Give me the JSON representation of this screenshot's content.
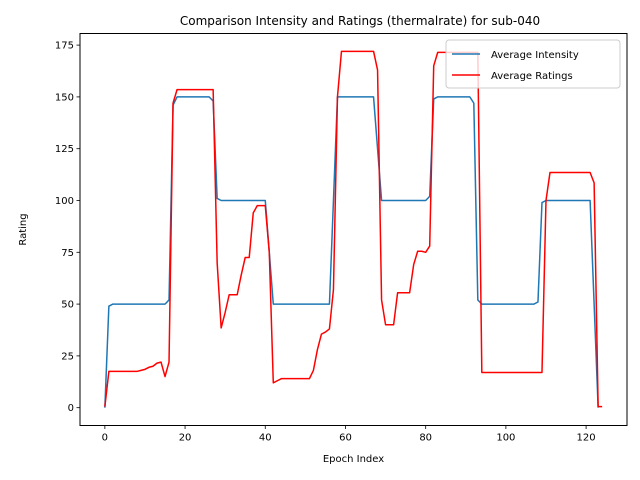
{
  "chart_data": {
    "type": "line",
    "title": "Comparison Intensity and Ratings (thermalrate) for sub-040",
    "xlabel": "Epoch Index",
    "ylabel": "Rating",
    "xlim": [
      -6.2,
      130.2
    ],
    "ylim": [
      -8.6,
      180.6
    ],
    "xticks": [
      0,
      20,
      40,
      60,
      80,
      100,
      120
    ],
    "yticks": [
      0,
      25,
      50,
      75,
      100,
      125,
      150,
      175
    ],
    "grid": false,
    "legend": "top-right",
    "series": [
      {
        "name": "Average Intensity",
        "color": "#1f77b4",
        "x": [
          0,
          1,
          2,
          15,
          16,
          17,
          18,
          26,
          27,
          28,
          29,
          40,
          41,
          42,
          56,
          57,
          58,
          67,
          68,
          69,
          70,
          80,
          81,
          82,
          83,
          91,
          92,
          93,
          94,
          107,
          108,
          109,
          110,
          121,
          122,
          123
        ],
        "y": [
          0,
          49,
          50,
          50,
          52,
          146,
          150,
          150,
          148,
          101,
          100,
          100,
          75,
          50,
          50,
          100,
          150,
          150,
          125,
          100,
          100,
          100,
          102,
          149,
          150,
          150,
          147,
          52,
          50,
          50,
          51,
          99,
          100,
          100,
          50,
          0
        ]
      },
      {
        "name": "Average Ratings",
        "color": "#ff0000",
        "x": [
          0,
          1,
          2,
          8,
          9,
          10,
          11,
          12,
          13,
          14,
          15,
          16,
          17,
          18,
          19,
          27,
          28,
          29,
          30,
          31,
          32,
          33,
          34,
          35,
          36,
          37,
          38,
          39,
          40,
          41,
          42,
          43,
          44,
          51,
          52,
          53,
          54,
          55,
          56,
          57,
          58,
          59,
          67,
          68,
          69,
          70,
          71,
          72,
          73,
          74,
          75,
          76,
          77,
          78,
          79,
          80,
          81,
          82,
          83,
          93,
          94,
          108,
          109,
          110,
          111,
          121,
          122,
          123,
          124
        ],
        "y": [
          0.5,
          17.5,
          17.5,
          17.5,
          18,
          18.5,
          19.5,
          20,
          21.5,
          22,
          15,
          22,
          147,
          153.5,
          153.5,
          153.5,
          70,
          38.5,
          46,
          54.5,
          54.5,
          54.5,
          64,
          72.5,
          72.5,
          94,
          97.5,
          97.5,
          97.5,
          75,
          12,
          13,
          14,
          14,
          18,
          28,
          35.5,
          36.5,
          38,
          57,
          150,
          172,
          172,
          163,
          52,
          40,
          40,
          40,
          55.5,
          55.5,
          55.5,
          55.5,
          69,
          75.5,
          75.5,
          75,
          78,
          165,
          171.5,
          171.5,
          17,
          17,
          17,
          100,
          113.5,
          113.5,
          108.5,
          0.5,
          0.5
        ]
      }
    ]
  }
}
